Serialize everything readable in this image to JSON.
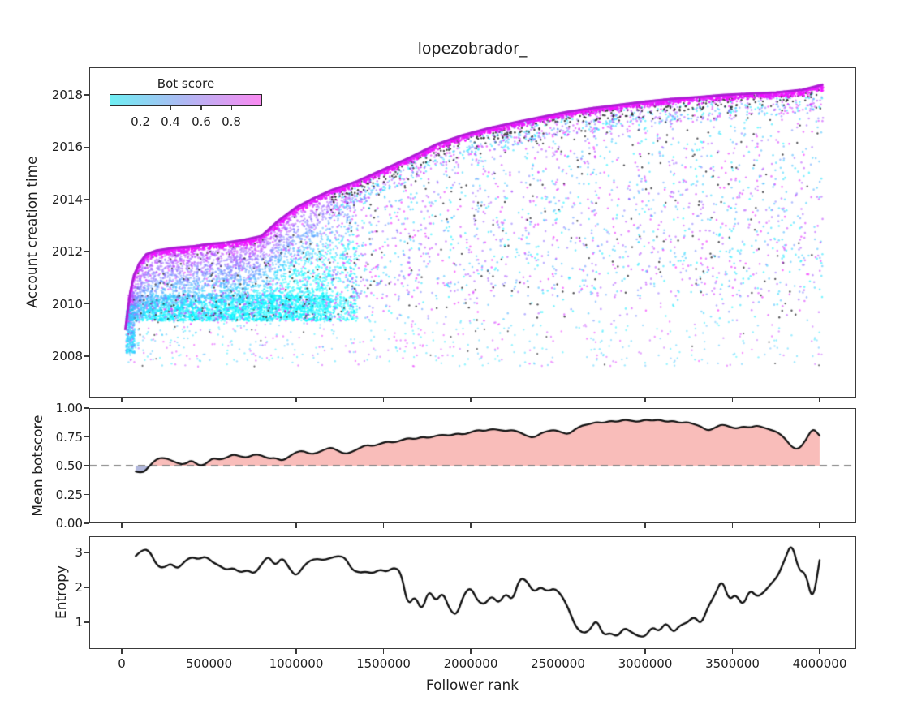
{
  "chart_data": [
    {
      "type": "scatter",
      "title": "lopezobrador_",
      "ylabel": "Account creation time",
      "yticks": [
        2018,
        2016,
        2014,
        2012,
        2010,
        2008
      ],
      "ylim": [
        2006.4,
        2019.1
      ],
      "xlim": [
        -186000,
        4210000
      ],
      "grid": false,
      "colorbar": {
        "label": "Bot score",
        "tick_labels": [
          "0.2",
          "0.4",
          "0.6",
          "0.8"
        ],
        "ticks": [
          0.2,
          0.4,
          0.6,
          0.8
        ],
        "range": [
          0,
          1
        ],
        "cmap_name": "cool",
        "cmap_left_hex": "#6feef3",
        "cmap_right_hex": "#fa8af1"
      },
      "point_color_dark_hex": "#2d2d32",
      "cap_color_hex": "#ac1ed2",
      "boundary_rank": [
        20000,
        35000,
        50000,
        70000,
        100000,
        140000,
        200000,
        300000,
        400000,
        500000,
        600000,
        700000,
        800000,
        900000,
        1000000,
        1100000,
        1200000,
        1350000,
        1500000,
        1650000,
        1800000,
        1950000,
        2100000,
        2250000,
        2400000,
        2550000,
        2700000,
        2850000,
        3000000,
        3150000,
        3300000,
        3450000,
        3600000,
        3750000,
        3900000,
        4020000
      ],
      "boundary_year": [
        2009.0,
        2009.8,
        2010.5,
        2011.1,
        2011.55,
        2011.9,
        2012.05,
        2012.15,
        2012.2,
        2012.3,
        2012.35,
        2012.45,
        2012.6,
        2013.2,
        2013.7,
        2014.05,
        2014.35,
        2014.7,
        2015.15,
        2015.6,
        2016.1,
        2016.45,
        2016.72,
        2016.95,
        2017.15,
        2017.35,
        2017.5,
        2017.62,
        2017.75,
        2017.85,
        2017.92,
        2018.0,
        2018.05,
        2018.1,
        2018.2,
        2018.4
      ],
      "dense_cloud_bottom_year": 2009.35,
      "sparse_tail_year_range": [
        2007.6,
        2009.35
      ],
      "density": {
        "left_cloud_n": 6500,
        "right_cloud_n": 5200,
        "deep_tail_n": 520,
        "cap_band_n": 2600,
        "first_column_n": 320
      }
    },
    {
      "type": "line",
      "ylabel": "Mean botscore",
      "ytick_labels": [
        "1.00",
        "0.75",
        "0.50",
        "0.25",
        "0.00"
      ],
      "yticks": [
        1.0,
        0.75,
        0.5,
        0.25,
        0.0
      ],
      "ylim": [
        0,
        1
      ],
      "threshold": 0.5,
      "threshold_style": "dashed-gray",
      "fill_above_color": "#f9bdba",
      "fill_below_color": "#b3b9dd",
      "line_color": "#111111",
      "x_start_rank": 80000,
      "x_step_rank": 40000,
      "values": [
        0.45,
        0.43,
        0.5,
        0.56,
        0.57,
        0.55,
        0.52,
        0.51,
        0.55,
        0.5,
        0.51,
        0.57,
        0.55,
        0.57,
        0.6,
        0.58,
        0.57,
        0.6,
        0.59,
        0.56,
        0.57,
        0.54,
        0.58,
        0.62,
        0.63,
        0.6,
        0.61,
        0.64,
        0.66,
        0.63,
        0.6,
        0.62,
        0.65,
        0.68,
        0.67,
        0.69,
        0.71,
        0.7,
        0.72,
        0.74,
        0.73,
        0.75,
        0.74,
        0.76,
        0.77,
        0.76,
        0.78,
        0.77,
        0.79,
        0.81,
        0.8,
        0.82,
        0.81,
        0.8,
        0.81,
        0.79,
        0.76,
        0.74,
        0.78,
        0.8,
        0.81,
        0.79,
        0.77,
        0.82,
        0.85,
        0.86,
        0.88,
        0.87,
        0.89,
        0.88,
        0.9,
        0.89,
        0.88,
        0.9,
        0.89,
        0.9,
        0.88,
        0.89,
        0.87,
        0.88,
        0.86,
        0.84,
        0.8,
        0.83,
        0.86,
        0.84,
        0.82,
        0.84,
        0.83,
        0.85,
        0.83,
        0.81,
        0.79,
        0.74,
        0.66,
        0.64,
        0.72,
        0.83,
        0.76
      ]
    },
    {
      "type": "line",
      "ylabel": "Entropy",
      "xlabel": "Follower rank",
      "ytick_labels": [
        "3",
        "2",
        "1"
      ],
      "yticks": [
        3,
        2,
        1
      ],
      "xtick_labels": [
        "0",
        "500000",
        "1000000",
        "1500000",
        "2000000",
        "2500000",
        "3000000",
        "3500000",
        "4000000"
      ],
      "xticks": [
        0,
        500000,
        1000000,
        1500000,
        2000000,
        2500000,
        3000000,
        3500000,
        4000000
      ],
      "line_color": "#111111",
      "x_start_rank": 80000,
      "x_step_rank": 40000,
      "values": [
        2.9,
        3.1,
        3.05,
        2.62,
        2.55,
        2.7,
        2.52,
        2.75,
        2.88,
        2.8,
        2.9,
        2.72,
        2.62,
        2.5,
        2.56,
        2.42,
        2.5,
        2.38,
        2.65,
        2.92,
        2.6,
        2.88,
        2.55,
        2.3,
        2.6,
        2.78,
        2.82,
        2.78,
        2.85,
        2.9,
        2.86,
        2.5,
        2.42,
        2.45,
        2.4,
        2.52,
        2.44,
        2.58,
        2.45,
        1.45,
        1.78,
        1.3,
        1.95,
        1.58,
        1.88,
        1.35,
        1.18,
        1.8,
        2.02,
        1.6,
        1.5,
        1.78,
        1.52,
        1.85,
        1.6,
        2.28,
        2.2,
        1.85,
        2.02,
        1.88,
        1.98,
        1.78,
        1.4,
        0.88,
        0.68,
        0.75,
        1.1,
        0.62,
        0.7,
        0.58,
        0.85,
        0.72,
        0.6,
        0.58,
        0.88,
        0.72,
        1.02,
        0.68,
        0.92,
        0.98,
        1.18,
        0.92,
        1.45,
        1.78,
        2.25,
        1.62,
        1.82,
        1.45,
        1.95,
        1.72,
        1.85,
        2.1,
        2.32,
        2.8,
        3.3,
        2.48,
        2.42,
        1.55,
        2.78
      ]
    }
  ]
}
